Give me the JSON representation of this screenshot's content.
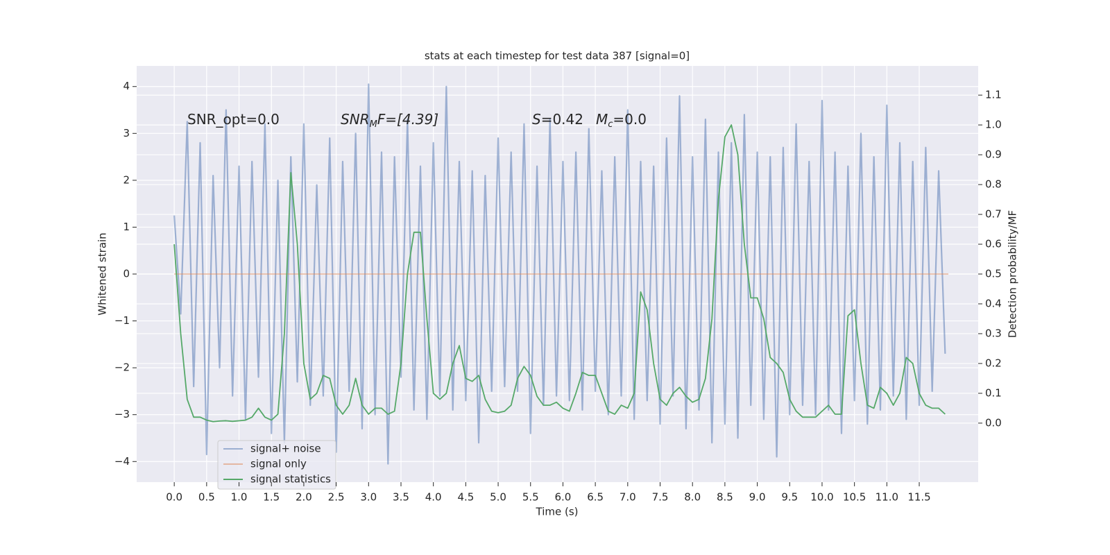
{
  "chart_data": {
    "type": "line",
    "title": "stats at each timestep for test data 387 [signal=0]",
    "xlabel": "Time (s)",
    "ylabel": "Whitened strain",
    "y2label": "Detection probability/MF",
    "annotations": [
      [
        "SNR_opt=0.0"
      ],
      [
        "SNR",
        "M",
        "F=[4.39]"
      ],
      [
        "S",
        "=0.42"
      ],
      [
        "M",
        "c",
        "=0.0"
      ]
    ],
    "grid": true,
    "legend": "lower left",
    "xlim": [
      -0.58,
      12.41
    ],
    "ylim": [
      -4.44,
      4.44
    ],
    "y2lim": [
      -0.198,
      1.198
    ],
    "xticks": [
      {
        "value": 0,
        "label": "0.0"
      },
      0.5,
      {
        "value": 1,
        "label": "1.0"
      },
      1.5,
      {
        "value": 2,
        "label": "2.0"
      },
      2.5,
      {
        "value": 3,
        "label": "3.0"
      },
      3.5,
      {
        "value": 4,
        "label": "4.0"
      },
      4.5,
      {
        "value": 5,
        "label": "5.0"
      },
      5.5,
      {
        "value": 6,
        "label": "6.0"
      },
      6.5,
      {
        "value": 7,
        "label": "7.0"
      },
      7.5,
      {
        "value": 8,
        "label": "8.0"
      },
      8.5,
      {
        "value": 9,
        "label": "9.0"
      },
      9.5,
      {
        "value": 10,
        "label": "10.0"
      },
      10.5,
      {
        "value": 11,
        "label": "11.0"
      },
      11.5
    ],
    "yticks": [
      {
        "value": -4,
        "label": "−4"
      },
      {
        "value": -3,
        "label": "−3"
      },
      {
        "value": -2,
        "label": "−2"
      },
      {
        "value": -1,
        "label": "−1"
      },
      0,
      1,
      2,
      3,
      4
    ],
    "y2ticks": [
      {
        "value": 0,
        "label": "0.0"
      },
      0.1,
      0.2,
      0.3,
      0.4,
      0.5,
      0.6,
      0.7,
      0.8,
      0.9,
      {
        "value": 1,
        "label": "1.0"
      },
      1.1
    ],
    "x": [
      0.0,
      0.1,
      0.2,
      0.3,
      0.4,
      0.5,
      0.6,
      0.7,
      0.8,
      0.9,
      1.0,
      1.1,
      1.2,
      1.3,
      1.4,
      1.5,
      1.6,
      1.7,
      1.8,
      1.9,
      2.0,
      2.1,
      2.2,
      2.3,
      2.4,
      2.5,
      2.6,
      2.7,
      2.8,
      2.9,
      3.0,
      3.1,
      3.2,
      3.3,
      3.4,
      3.5,
      3.6,
      3.7,
      3.8,
      3.9,
      4.0,
      4.1,
      4.2,
      4.3,
      4.4,
      4.5,
      4.6,
      4.7,
      4.8,
      4.9,
      5.0,
      5.1,
      5.2,
      5.3,
      5.4,
      5.5,
      5.6,
      5.7,
      5.8,
      5.9,
      6.0,
      6.1,
      6.2,
      6.3,
      6.4,
      6.5,
      6.6,
      6.7,
      6.8,
      6.9,
      7.0,
      7.1,
      7.2,
      7.3,
      7.4,
      7.5,
      7.6,
      7.7,
      7.8,
      7.9,
      8.0,
      8.1,
      8.2,
      8.3,
      8.4,
      8.5,
      8.6,
      8.7,
      8.8,
      8.9,
      9.0,
      9.1,
      9.2,
      9.3,
      9.4,
      9.5,
      9.6,
      9.7,
      9.8,
      9.9,
      10.0,
      10.1,
      10.2,
      10.3,
      10.4,
      10.5,
      10.6,
      10.7,
      10.8,
      10.9,
      11.0,
      11.1,
      11.2,
      11.3,
      11.4,
      11.5,
      11.6,
      11.7,
      11.8,
      11.9
    ],
    "series": [
      {
        "name": "signal+ noise",
        "color": "#4c72b0",
        "values": [
          1.25,
          -0.85,
          3.25,
          -2.4,
          2.8,
          -3.85,
          2.1,
          -2.0,
          3.5,
          -2.6,
          2.3,
          -3.1,
          2.4,
          -2.2,
          3.2,
          -3.4,
          2.0,
          -3.6,
          2.5,
          -2.3,
          3.2,
          -2.8,
          1.9,
          -2.6,
          2.9,
          -3.8,
          2.4,
          -2.5,
          3.0,
          -3.3,
          4.05,
          -3.0,
          2.6,
          -4.05,
          2.5,
          -2.2,
          3.3,
          -2.9,
          2.3,
          -3.1,
          2.8,
          -2.6,
          4.0,
          -2.9,
          2.4,
          -2.7,
          2.2,
          -3.6,
          2.1,
          -2.5,
          2.9,
          -2.4,
          2.6,
          -2.5,
          3.2,
          -3.4,
          2.3,
          -2.8,
          3.3,
          -2.6,
          2.4,
          -2.7,
          2.6,
          -2.9,
          3.1,
          -2.5,
          2.2,
          -3.0,
          2.5,
          -2.6,
          3.5,
          -3.1,
          2.4,
          -2.7,
          2.3,
          -3.2,
          2.9,
          -2.6,
          3.8,
          -3.3,
          2.5,
          -2.9,
          3.3,
          -3.6,
          2.6,
          -3.2,
          2.8,
          -3.5,
          3.4,
          -2.8,
          2.6,
          -3.1,
          2.5,
          -3.9,
          2.7,
          -3.0,
          3.2,
          -2.8,
          2.4,
          -3.0,
          3.7,
          -2.9,
          2.6,
          -3.4,
          2.3,
          -2.7,
          3.0,
          -3.2,
          2.5,
          -2.9,
          3.6,
          -2.6,
          2.8,
          -3.1,
          2.4,
          -2.8,
          2.7,
          -2.5,
          2.2,
          -1.7
        ]
      },
      {
        "name": "signal only",
        "color": "#dd8452",
        "x": [
          0.0,
          11.95
        ],
        "values": [
          0,
          0
        ]
      },
      {
        "name": "signal statistics",
        "color": "#55a868",
        "axis": "y2",
        "values": [
          0.6,
          0.3,
          0.08,
          0.02,
          0.02,
          0.01,
          0.005,
          0.007,
          0.008,
          0.006,
          0.008,
          0.01,
          0.02,
          0.05,
          0.02,
          0.01,
          0.03,
          0.3,
          0.84,
          0.6,
          0.2,
          0.08,
          0.1,
          0.16,
          0.15,
          0.06,
          0.03,
          0.06,
          0.15,
          0.06,
          0.03,
          0.05,
          0.05,
          0.03,
          0.04,
          0.2,
          0.5,
          0.64,
          0.64,
          0.35,
          0.1,
          0.08,
          0.1,
          0.2,
          0.26,
          0.15,
          0.14,
          0.16,
          0.08,
          0.04,
          0.035,
          0.04,
          0.06,
          0.15,
          0.19,
          0.16,
          0.09,
          0.06,
          0.06,
          0.07,
          0.05,
          0.04,
          0.1,
          0.17,
          0.16,
          0.16,
          0.1,
          0.04,
          0.03,
          0.06,
          0.05,
          0.1,
          0.44,
          0.38,
          0.2,
          0.08,
          0.06,
          0.1,
          0.12,
          0.09,
          0.07,
          0.08,
          0.15,
          0.35,
          0.75,
          0.96,
          1.0,
          0.9,
          0.6,
          0.42,
          0.42,
          0.35,
          0.22,
          0.2,
          0.17,
          0.08,
          0.04,
          0.02,
          0.02,
          0.02,
          0.04,
          0.06,
          0.03,
          0.03,
          0.36,
          0.38,
          0.2,
          0.06,
          0.05,
          0.12,
          0.1,
          0.06,
          0.1,
          0.22,
          0.2,
          0.1,
          0.06,
          0.05,
          0.05,
          0.03
        ]
      }
    ]
  }
}
